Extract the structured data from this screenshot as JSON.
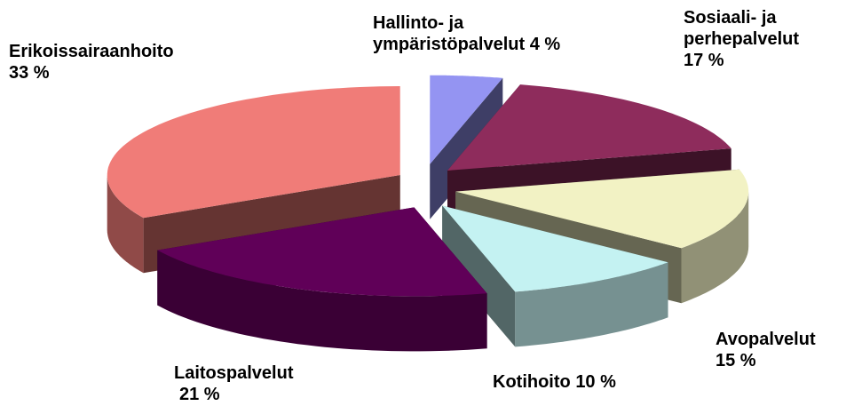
{
  "chart_data": {
    "type": "pie",
    "categories": [
      "Hallinto- ja\nympäristöpalvelut",
      "Sosiaali- ja\nperhepalvelut",
      "Avopalvelut",
      "Kotihoito",
      "Laitospalvelut",
      "Erikoissairaanhoito"
    ],
    "values": [
      4,
      17,
      15,
      10,
      21,
      33
    ],
    "value_labels": [
      "4 %",
      "17 %",
      "15 %",
      "10 %",
      "21 %",
      "33 %"
    ],
    "colors": [
      "#9494f2",
      "#8e2c5c",
      "#f2f2c4",
      "#c4f2f2",
      "#600058",
      "#f07c78"
    ]
  }
}
